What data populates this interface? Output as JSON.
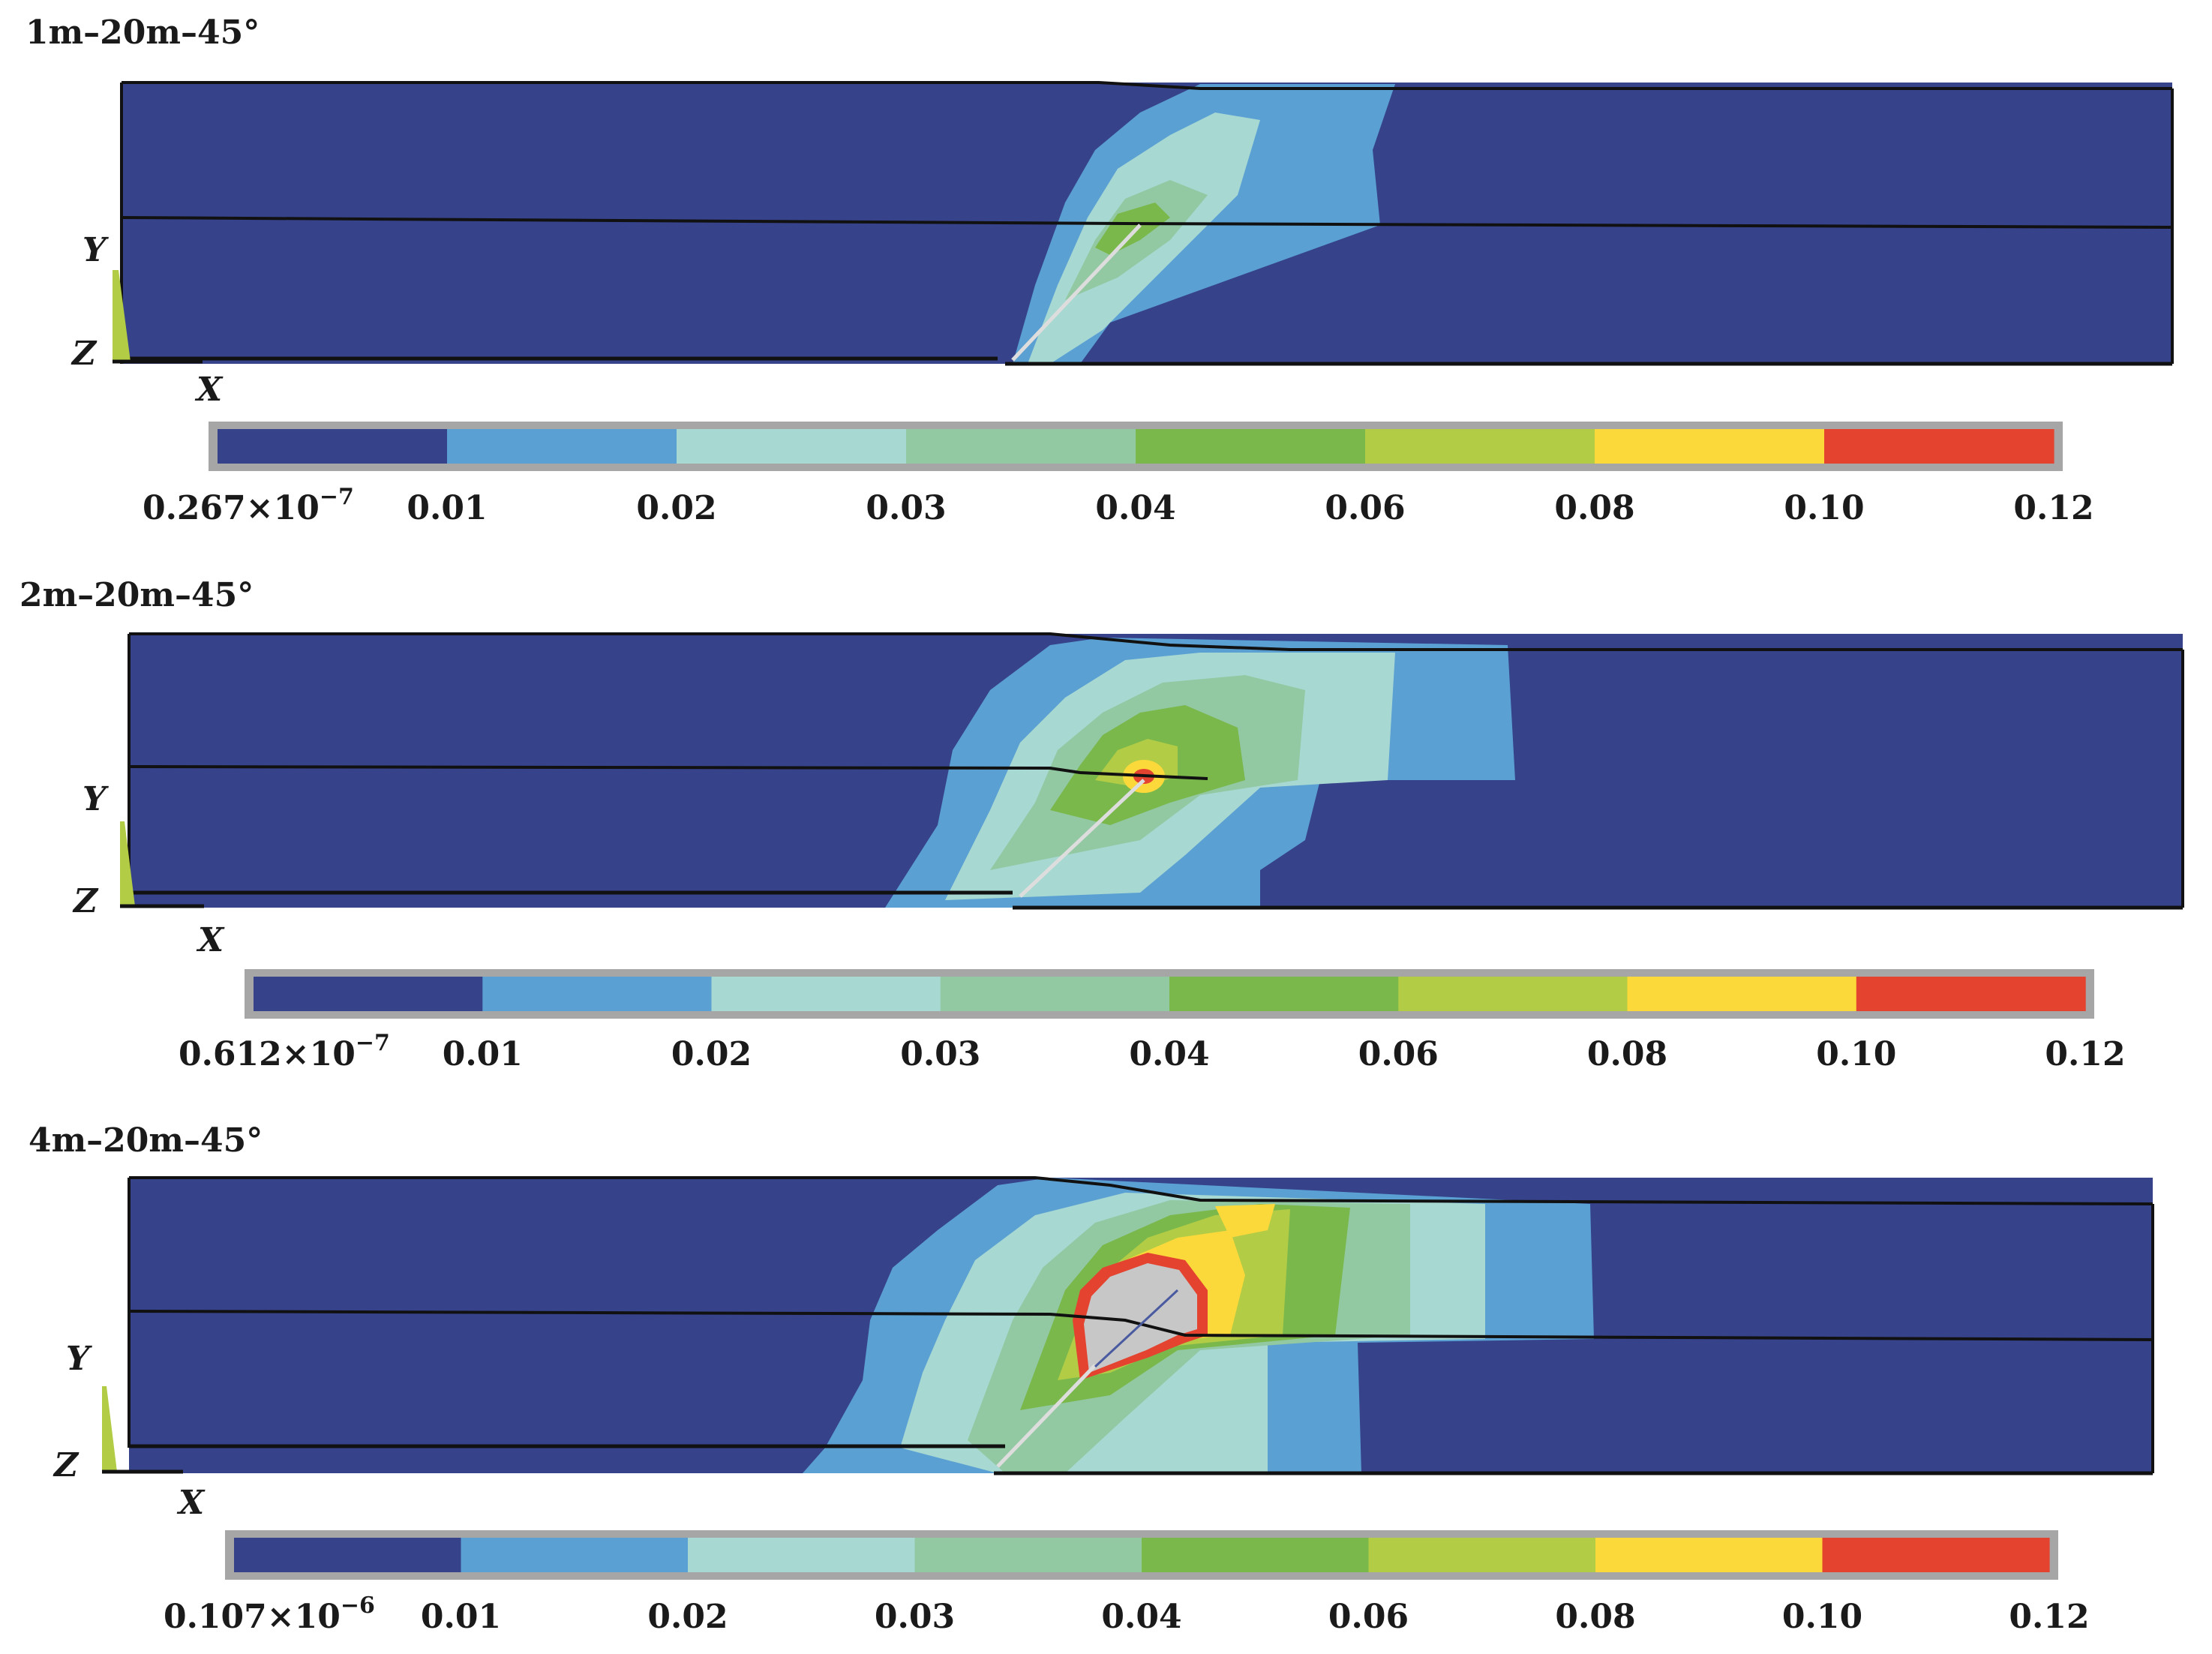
{
  "colors": {
    "band0": "#36428a",
    "band1": "#5aa0d2",
    "band2": "#a8d8d2",
    "band3": "#92c8a2",
    "band4": "#7ab84c",
    "band5": "#b2cc46",
    "band6": "#fbd93a",
    "band7": "#e4432f",
    "cavity": "#c7c7c7",
    "outline": "#111111",
    "frame": "#a6a6a6"
  },
  "axes": {
    "y": "Y",
    "z": "Z",
    "x": "X"
  },
  "panels": [
    {
      "title": "1m–20m–45°",
      "legend_min": {
        "mantissa": "0.267×10",
        "exponent": "−7"
      },
      "ticks": [
        "0.01",
        "0.02",
        "0.03",
        "0.04",
        "0.06",
        "0.08",
        "0.10",
        "0.12"
      ]
    },
    {
      "title": "2m–20m–45°",
      "legend_min": {
        "mantissa": "0.612×10",
        "exponent": "−7"
      },
      "ticks": [
        "0.01",
        "0.02",
        "0.03",
        "0.04",
        "0.06",
        "0.08",
        "0.10",
        "0.12"
      ]
    },
    {
      "title": "4m–20m–45°",
      "legend_min": {
        "mantissa": "0.107×10",
        "exponent": "−6"
      },
      "ticks": [
        "0.01",
        "0.02",
        "0.03",
        "0.04",
        "0.06",
        "0.08",
        "0.10",
        "0.12"
      ]
    }
  ]
}
